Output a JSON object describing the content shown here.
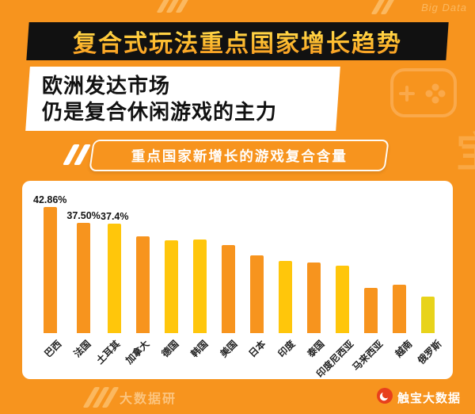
{
  "header": {
    "title": "复合式玩法重点国家增长趋势",
    "subtitle_line1": "欧洲发达市场",
    "subtitle_line2": "仍是复合休闲游戏的主力"
  },
  "chart_banner": {
    "label": "重点国家新增长的游戏复合含量"
  },
  "chart_data": {
    "type": "bar",
    "title": "重点国家新增长的游戏复合含量",
    "categories": [
      "巴西",
      "法国",
      "土耳其",
      "加拿大",
      "德国",
      "韩国",
      "美国",
      "日本",
      "印度",
      "泰国",
      "印度尼西亚",
      "马来西亚",
      "越南",
      "俄罗斯"
    ],
    "values": [
      42.86,
      37.5,
      37.4,
      33.0,
      31.5,
      32.0,
      30.0,
      26.5,
      24.5,
      24.0,
      23.0,
      15.5,
      16.5,
      12.5
    ],
    "value_labels": [
      "42.86%",
      "37.50%",
      "37.4%",
      "",
      "",
      "",
      "",
      "",
      "",
      "",
      "",
      "",
      "",
      ""
    ],
    "bar_colors": [
      "#F7941E",
      "#F7941E",
      "#FFC60B",
      "#F7941E",
      "#FFC60B",
      "#FFC60B",
      "#F7941E",
      "#F7941E",
      "#FFC60B",
      "#F7941E",
      "#FFC60B",
      "#F7941E",
      "#F7941E",
      "#E8D31B"
    ],
    "ylim": [
      0,
      45
    ],
    "xlabel": "",
    "ylabel": "",
    "legend": "none",
    "grid": false
  },
  "footer": {
    "brand": "触宝大数据"
  },
  "watermarks": {
    "top_right_text": "Big Data",
    "bottom_left_text": "大数据研",
    "right_edge_text": "宝"
  },
  "colors": {
    "background": "#F7941E",
    "banner_bg": "#111111",
    "chart_banner_bg": "#F7941E",
    "card_bg": "#FFFFFF",
    "bar_orange": "#F7941E",
    "bar_yellow": "#FFC60B"
  }
}
